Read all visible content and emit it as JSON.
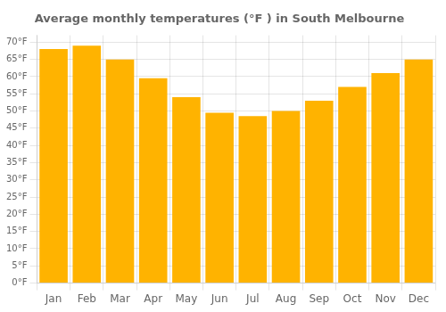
{
  "chart_data": {
    "type": "bar",
    "title": "Average monthly temperatures (°F ) in South Melbourne",
    "categories": [
      "Jan",
      "Feb",
      "Mar",
      "Apr",
      "May",
      "Jun",
      "Jul",
      "Aug",
      "Sep",
      "Oct",
      "Nov",
      "Dec"
    ],
    "values": [
      68,
      69,
      65,
      59.5,
      54,
      49.5,
      48.5,
      50,
      53,
      57,
      61,
      65
    ],
    "color": "#FFB300",
    "ylim": [
      0,
      72
    ],
    "yticks": [
      {
        "value": 0,
        "label": "0°F"
      },
      {
        "value": 5,
        "label": "5°F"
      },
      {
        "value": 10,
        "label": "10°F"
      },
      {
        "value": 15,
        "label": "15°F"
      },
      {
        "value": 20,
        "label": "20°F"
      },
      {
        "value": 25,
        "label": "25°F"
      },
      {
        "value": 30,
        "label": "30°F"
      },
      {
        "value": 35,
        "label": "35°F"
      },
      {
        "value": 40,
        "label": "40°F"
      },
      {
        "value": 45,
        "label": "45°F"
      },
      {
        "value": 50,
        "label": "50°F"
      },
      {
        "value": 55,
        "label": "55°F"
      },
      {
        "value": 60,
        "label": "60°F"
      },
      {
        "value": 65,
        "label": "65°F"
      },
      {
        "value": 70,
        "label": "70°F"
      }
    ],
    "grid": true
  }
}
